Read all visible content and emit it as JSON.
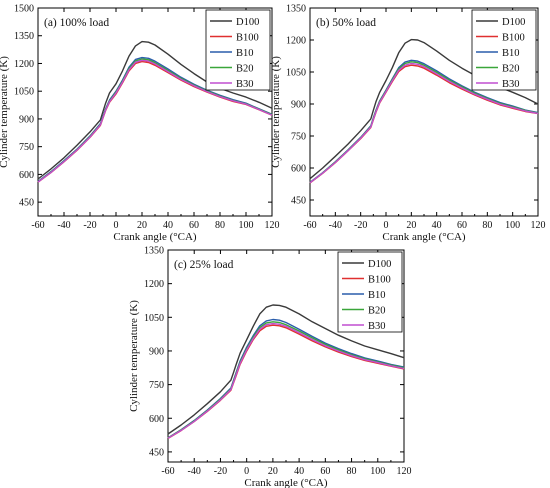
{
  "chart_data": [
    {
      "type": "line",
      "title": "(a) 100% load",
      "xlabel": "Crank angle (°CA)",
      "ylabel": "Cylinder temperature (K)",
      "xlim": [
        -60,
        120
      ],
      "ylim": [
        375,
        1500
      ],
      "xticks": [
        -60,
        -40,
        -20,
        0,
        20,
        40,
        60,
        80,
        100,
        120
      ],
      "yticks": [
        450,
        600,
        750,
        900,
        1050,
        1200,
        1350,
        1500
      ],
      "legend_position": "top-right",
      "x": [
        -60,
        -50,
        -40,
        -30,
        -20,
        -12,
        -10,
        -8,
        -5,
        0,
        5,
        10,
        15,
        20,
        25,
        30,
        40,
        50,
        60,
        70,
        80,
        90,
        100,
        110,
        120
      ],
      "series": [
        {
          "name": "D100",
          "color": "#3a3a3a",
          "values": [
            575,
            630,
            690,
            758,
            830,
            895,
            940,
            985,
            1040,
            1090,
            1160,
            1240,
            1295,
            1318,
            1315,
            1300,
            1250,
            1195,
            1145,
            1100,
            1065,
            1040,
            1018,
            990,
            958
          ]
        },
        {
          "name": "B100",
          "color": "#e03030",
          "values": [
            558,
            610,
            668,
            730,
            800,
            865,
            905,
            945,
            990,
            1035,
            1095,
            1160,
            1200,
            1210,
            1205,
            1190,
            1150,
            1110,
            1075,
            1045,
            1018,
            995,
            978,
            950,
            920
          ]
        },
        {
          "name": "B10",
          "color": "#2a5dab",
          "values": [
            562,
            615,
            674,
            737,
            808,
            875,
            915,
            955,
            1002,
            1050,
            1110,
            1180,
            1222,
            1232,
            1228,
            1212,
            1170,
            1125,
            1088,
            1055,
            1028,
            1004,
            985,
            955,
            925
          ]
        },
        {
          "name": "B20",
          "color": "#3aa63a",
          "values": [
            560,
            613,
            671,
            734,
            805,
            871,
            911,
            951,
            997,
            1045,
            1104,
            1172,
            1214,
            1224,
            1220,
            1204,
            1162,
            1119,
            1083,
            1051,
            1024,
            1000,
            982,
            953,
            923
          ]
        },
        {
          "name": "B30",
          "color": "#c04fd0",
          "values": [
            559,
            611,
            669,
            732,
            802,
            868,
            908,
            948,
            993,
            1040,
            1099,
            1166,
            1207,
            1217,
            1213,
            1197,
            1156,
            1114,
            1079,
            1048,
            1021,
            998,
            980,
            951,
            921
          ]
        }
      ]
    },
    {
      "type": "line",
      "title": "(b) 50% load",
      "xlabel": "Crank angle (°CA)",
      "ylabel": "Cylinder temperature (K)",
      "xlim": [
        -60,
        120
      ],
      "ylim": [
        375,
        1350
      ],
      "xticks": [
        -60,
        -40,
        -20,
        0,
        20,
        40,
        60,
        80,
        100,
        120
      ],
      "yticks": [
        450,
        600,
        750,
        900,
        1050,
        1200,
        1350
      ],
      "legend_position": "top-right",
      "x": [
        -60,
        -50,
        -40,
        -30,
        -20,
        -12,
        -10,
        -8,
        -5,
        0,
        5,
        10,
        15,
        20,
        25,
        30,
        40,
        50,
        60,
        70,
        80,
        90,
        100,
        110,
        120
      ],
      "series": [
        {
          "name": "D100",
          "color": "#3a3a3a",
          "values": [
            550,
            600,
            655,
            712,
            775,
            830,
            870,
            910,
            955,
            1010,
            1070,
            1140,
            1185,
            1202,
            1200,
            1188,
            1148,
            1105,
            1068,
            1035,
            1005,
            978,
            955,
            930,
            900
          ]
        },
        {
          "name": "B100",
          "color": "#e03030",
          "values": [
            530,
            575,
            625,
            680,
            738,
            790,
            825,
            860,
            905,
            955,
            1005,
            1052,
            1075,
            1082,
            1078,
            1068,
            1035,
            1000,
            970,
            942,
            918,
            896,
            880,
            865,
            855
          ]
        },
        {
          "name": "B10",
          "color": "#2a5dab",
          "values": [
            533,
            578,
            629,
            685,
            744,
            798,
            835,
            870,
            915,
            965,
            1018,
            1070,
            1097,
            1105,
            1101,
            1089,
            1055,
            1018,
            985,
            955,
            930,
            907,
            890,
            872,
            860
          ]
        },
        {
          "name": "B20",
          "color": "#3aa63a",
          "values": [
            532,
            577,
            628,
            683,
            742,
            795,
            832,
            867,
            912,
            962,
            1014,
            1064,
            1090,
            1098,
            1094,
            1082,
            1048,
            1012,
            980,
            951,
            926,
            903,
            887,
            870,
            858
          ]
        },
        {
          "name": "B30",
          "color": "#c04fd0",
          "values": [
            531,
            576,
            626,
            681,
            740,
            792,
            828,
            863,
            908,
            958,
            1009,
            1058,
            1082,
            1090,
            1086,
            1075,
            1041,
            1006,
            975,
            946,
            922,
            899,
            883,
            867,
            856
          ]
        }
      ]
    },
    {
      "type": "line",
      "title": "(c) 25% load",
      "xlabel": "Crank angle (°CA)",
      "ylabel": "Cylinder temperature (K)",
      "xlim": [
        -60,
        120
      ],
      "ylim": [
        405,
        1350
      ],
      "xticks": [
        -60,
        -40,
        -20,
        0,
        20,
        40,
        60,
        80,
        100,
        120
      ],
      "yticks": [
        450,
        600,
        750,
        900,
        1050,
        1200,
        1350
      ],
      "legend_position": "top-right",
      "x": [
        -60,
        -50,
        -40,
        -30,
        -20,
        -12,
        -10,
        -8,
        -5,
        0,
        5,
        10,
        15,
        20,
        25,
        30,
        40,
        50,
        60,
        70,
        80,
        90,
        100,
        110,
        120
      ],
      "series": [
        {
          "name": "D100",
          "color": "#3a3a3a",
          "values": [
            530,
            570,
            615,
            665,
            718,
            770,
            805,
            840,
            890,
            950,
            1010,
            1065,
            1095,
            1105,
            1103,
            1095,
            1065,
            1030,
            1000,
            970,
            945,
            922,
            905,
            888,
            870
          ]
        },
        {
          "name": "B100",
          "color": "#e03030",
          "values": [
            510,
            545,
            585,
            630,
            680,
            725,
            758,
            790,
            840,
            900,
            950,
            990,
            1010,
            1015,
            1012,
            1003,
            975,
            945,
            918,
            895,
            875,
            858,
            845,
            832,
            820
          ]
        },
        {
          "name": "B10",
          "color": "#2a5dab",
          "values": [
            513,
            549,
            590,
            637,
            688,
            735,
            770,
            805,
            855,
            917,
            968,
            1012,
            1034,
            1040,
            1037,
            1027,
            997,
            965,
            935,
            910,
            888,
            869,
            855,
            840,
            828
          ]
        },
        {
          "name": "B20",
          "color": "#3aa63a",
          "values": [
            512,
            548,
            588,
            634,
            685,
            731,
            765,
            800,
            849,
            910,
            961,
            1004,
            1025,
            1030,
            1027,
            1017,
            989,
            958,
            929,
            905,
            883,
            865,
            851,
            837,
            825
          ]
        },
        {
          "name": "B30",
          "color": "#c04fd0",
          "values": [
            511,
            546,
            586,
            632,
            682,
            728,
            761,
            795,
            844,
            905,
            955,
            997,
            1017,
            1022,
            1019,
            1010,
            982,
            951,
            923,
            900,
            879,
            861,
            848,
            834,
            822
          ]
        }
      ]
    }
  ]
}
